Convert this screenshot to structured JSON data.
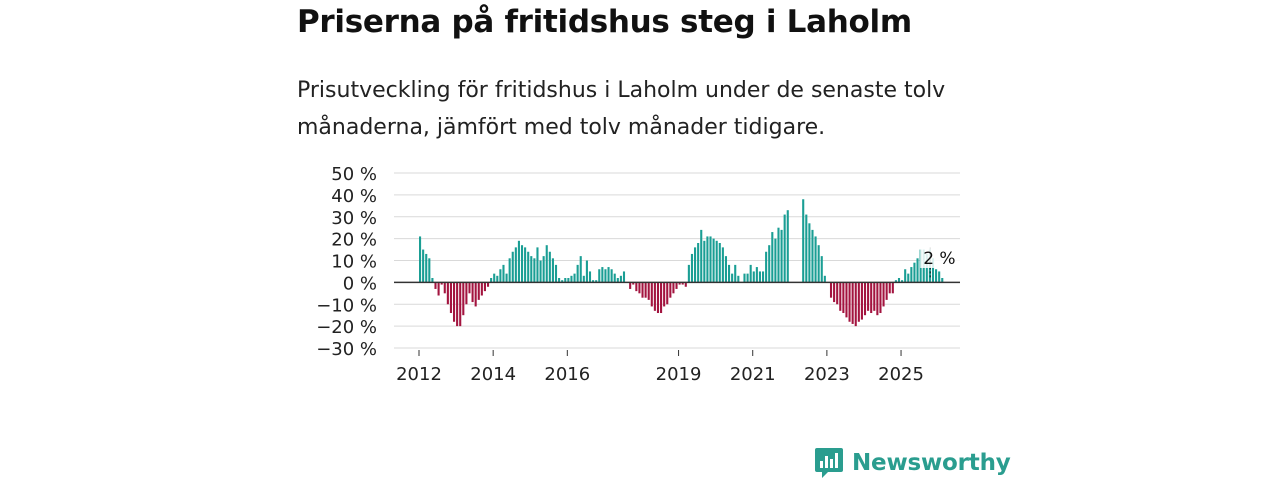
{
  "title": "Priserna på fritidshus steg i Laholm",
  "subtitle": "Prisutveckling för fritidshus i Laholm under de senaste tolv månaderna, jämfört med tolv månader tidigare.",
  "brand": "Newsworthy",
  "colors": {
    "positive": "#1a9e94",
    "negative": "#a3143f",
    "brand": "#2a9d8f"
  },
  "chart_data": {
    "type": "bar",
    "title": "Priserna på fritidshus steg i Laholm",
    "xlabel": "",
    "ylabel": "",
    "ylim": [
      -30,
      50
    ],
    "yticks": [
      50,
      40,
      30,
      20,
      10,
      0,
      -10,
      -20,
      -30
    ],
    "ytick_labels": [
      "50 %",
      "40 %",
      "30 %",
      "20 %",
      "10 %",
      "0 %",
      "−10 %",
      "−20 %",
      "−30 %"
    ],
    "xtick_labels": [
      "2012",
      "2014",
      "2016",
      "2019",
      "2021",
      "2023",
      "2025"
    ],
    "xtick_years": [
      2012,
      2014,
      2016,
      2019,
      2021,
      2023,
      2025
    ],
    "start": "2012-01",
    "annotation": "2 %",
    "values": [
      21,
      15,
      13,
      11,
      2,
      -3,
      -6,
      -1,
      -5,
      -10,
      -14,
      -18,
      -20,
      -20,
      -15,
      -10,
      -5,
      -9,
      -11,
      -8,
      -6,
      -4,
      -2,
      2,
      4,
      3,
      6,
      8,
      4,
      11,
      14,
      16,
      19,
      17,
      16,
      14,
      12,
      11,
      16,
      10,
      12,
      17,
      14,
      11,
      8,
      2,
      1,
      2,
      2,
      3,
      4,
      8,
      12,
      3,
      10,
      5,
      1,
      1,
      6,
      7,
      6,
      7,
      6,
      4,
      2,
      3,
      5,
      null,
      -3,
      -1,
      -4,
      -5,
      -7,
      -7,
      -8,
      -11,
      -13,
      -14,
      -14,
      -11,
      -10,
      -7,
      -5,
      -3,
      -1,
      -1,
      -2,
      8,
      13,
      16,
      18,
      24,
      19,
      21,
      21,
      20,
      19,
      18,
      16,
      12,
      8,
      4,
      8,
      3,
      null,
      4,
      4,
      8,
      5,
      7,
      5,
      5,
      14,
      17,
      23,
      20,
      25,
      24,
      31,
      33,
      null,
      null,
      null,
      null,
      38,
      31,
      27,
      24,
      21,
      17,
      12,
      3,
      null,
      -7,
      -9,
      -10,
      -13,
      -14,
      -16,
      -18,
      -19,
      -20,
      -18,
      -17,
      -15,
      -13,
      -14,
      -13,
      -15,
      -14,
      -11,
      -8,
      -5,
      -5,
      1,
      2,
      1,
      6,
      4,
      7,
      9,
      11,
      15,
      15,
      13,
      15,
      11,
      6,
      5,
      2
    ],
    "annotation_value": 2
  }
}
